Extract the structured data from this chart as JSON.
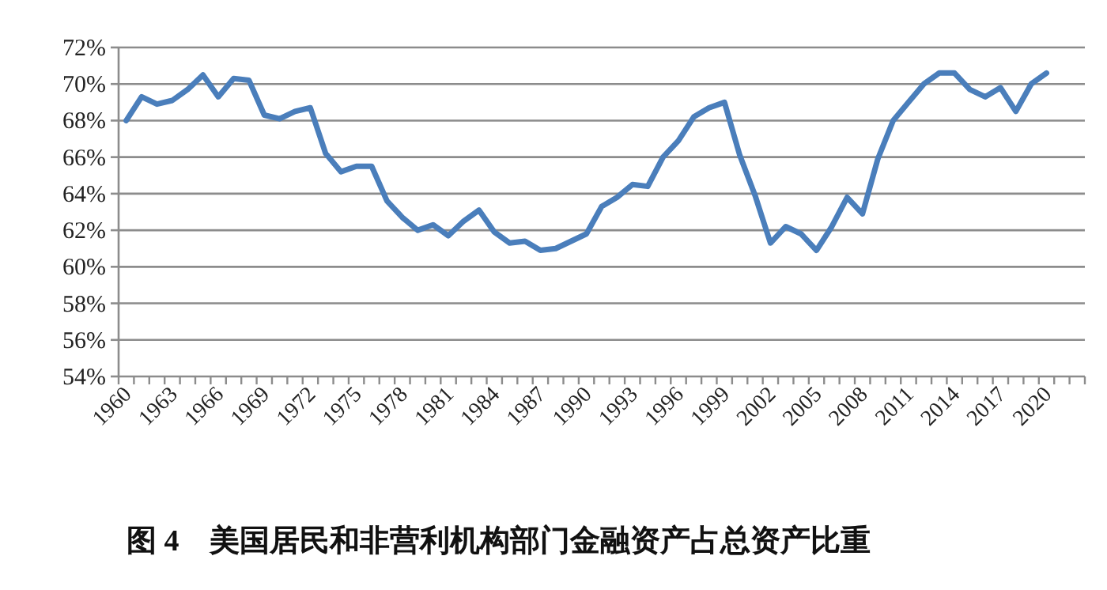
{
  "chart_data": {
    "type": "line",
    "title": "图 4　美国居民和非营利机构部门金融资产占总资产比重",
    "categories": [
      "1960",
      null,
      null,
      "1963",
      null,
      null,
      "1966",
      null,
      null,
      "1969",
      null,
      null,
      "1972",
      null,
      null,
      "1975",
      null,
      null,
      "1978",
      null,
      null,
      "1981",
      null,
      null,
      "1984",
      null,
      null,
      "1987",
      null,
      null,
      "1990",
      null,
      null,
      "1993",
      null,
      null,
      "1996",
      null,
      null,
      "1999",
      null,
      null,
      "2002",
      null,
      null,
      "2005",
      null,
      null,
      "2008",
      null,
      null,
      "2011",
      null,
      null,
      "2014",
      null,
      null,
      "2017",
      null,
      null,
      "2020",
      null,
      null
    ],
    "series": [
      {
        "color": "#4a7ebb",
        "values": [
          68.0,
          69.3,
          68.9,
          69.1,
          69.7,
          70.5,
          69.3,
          70.3,
          70.2,
          68.3,
          68.1,
          68.5,
          68.7,
          66.2,
          65.2,
          65.5,
          65.5,
          63.6,
          62.7,
          62.0,
          62.3,
          61.7,
          62.5,
          63.1,
          61.9,
          61.3,
          61.4,
          60.9,
          61.0,
          61.4,
          61.8,
          63.3,
          63.8,
          64.5,
          64.4,
          66.0,
          66.9,
          68.2,
          68.7,
          69.0,
          66.1,
          63.9,
          61.3,
          62.2,
          61.8,
          60.9,
          62.2,
          63.8,
          62.9,
          65.9,
          68.0,
          69.0,
          70.0,
          70.6,
          70.6,
          69.7,
          69.3,
          69.8,
          68.5,
          70.0,
          70.6,
          null,
          null
        ]
      }
    ],
    "ylim": [
      54,
      72
    ],
    "yticks": [
      {
        "value": 54,
        "label": "54%"
      },
      {
        "value": 56,
        "label": "56%"
      },
      {
        "value": 58,
        "label": "58%"
      },
      {
        "value": 60,
        "label": "60%"
      },
      {
        "value": 62,
        "label": "62%"
      },
      {
        "value": 64,
        "label": "64%"
      },
      {
        "value": 66,
        "label": "66%"
      },
      {
        "value": 68,
        "label": "68%"
      },
      {
        "value": 70,
        "label": "70%"
      },
      {
        "value": 72,
        "label": "72%"
      }
    ],
    "grid": "y",
    "marker": "none",
    "line_style": "solid"
  }
}
